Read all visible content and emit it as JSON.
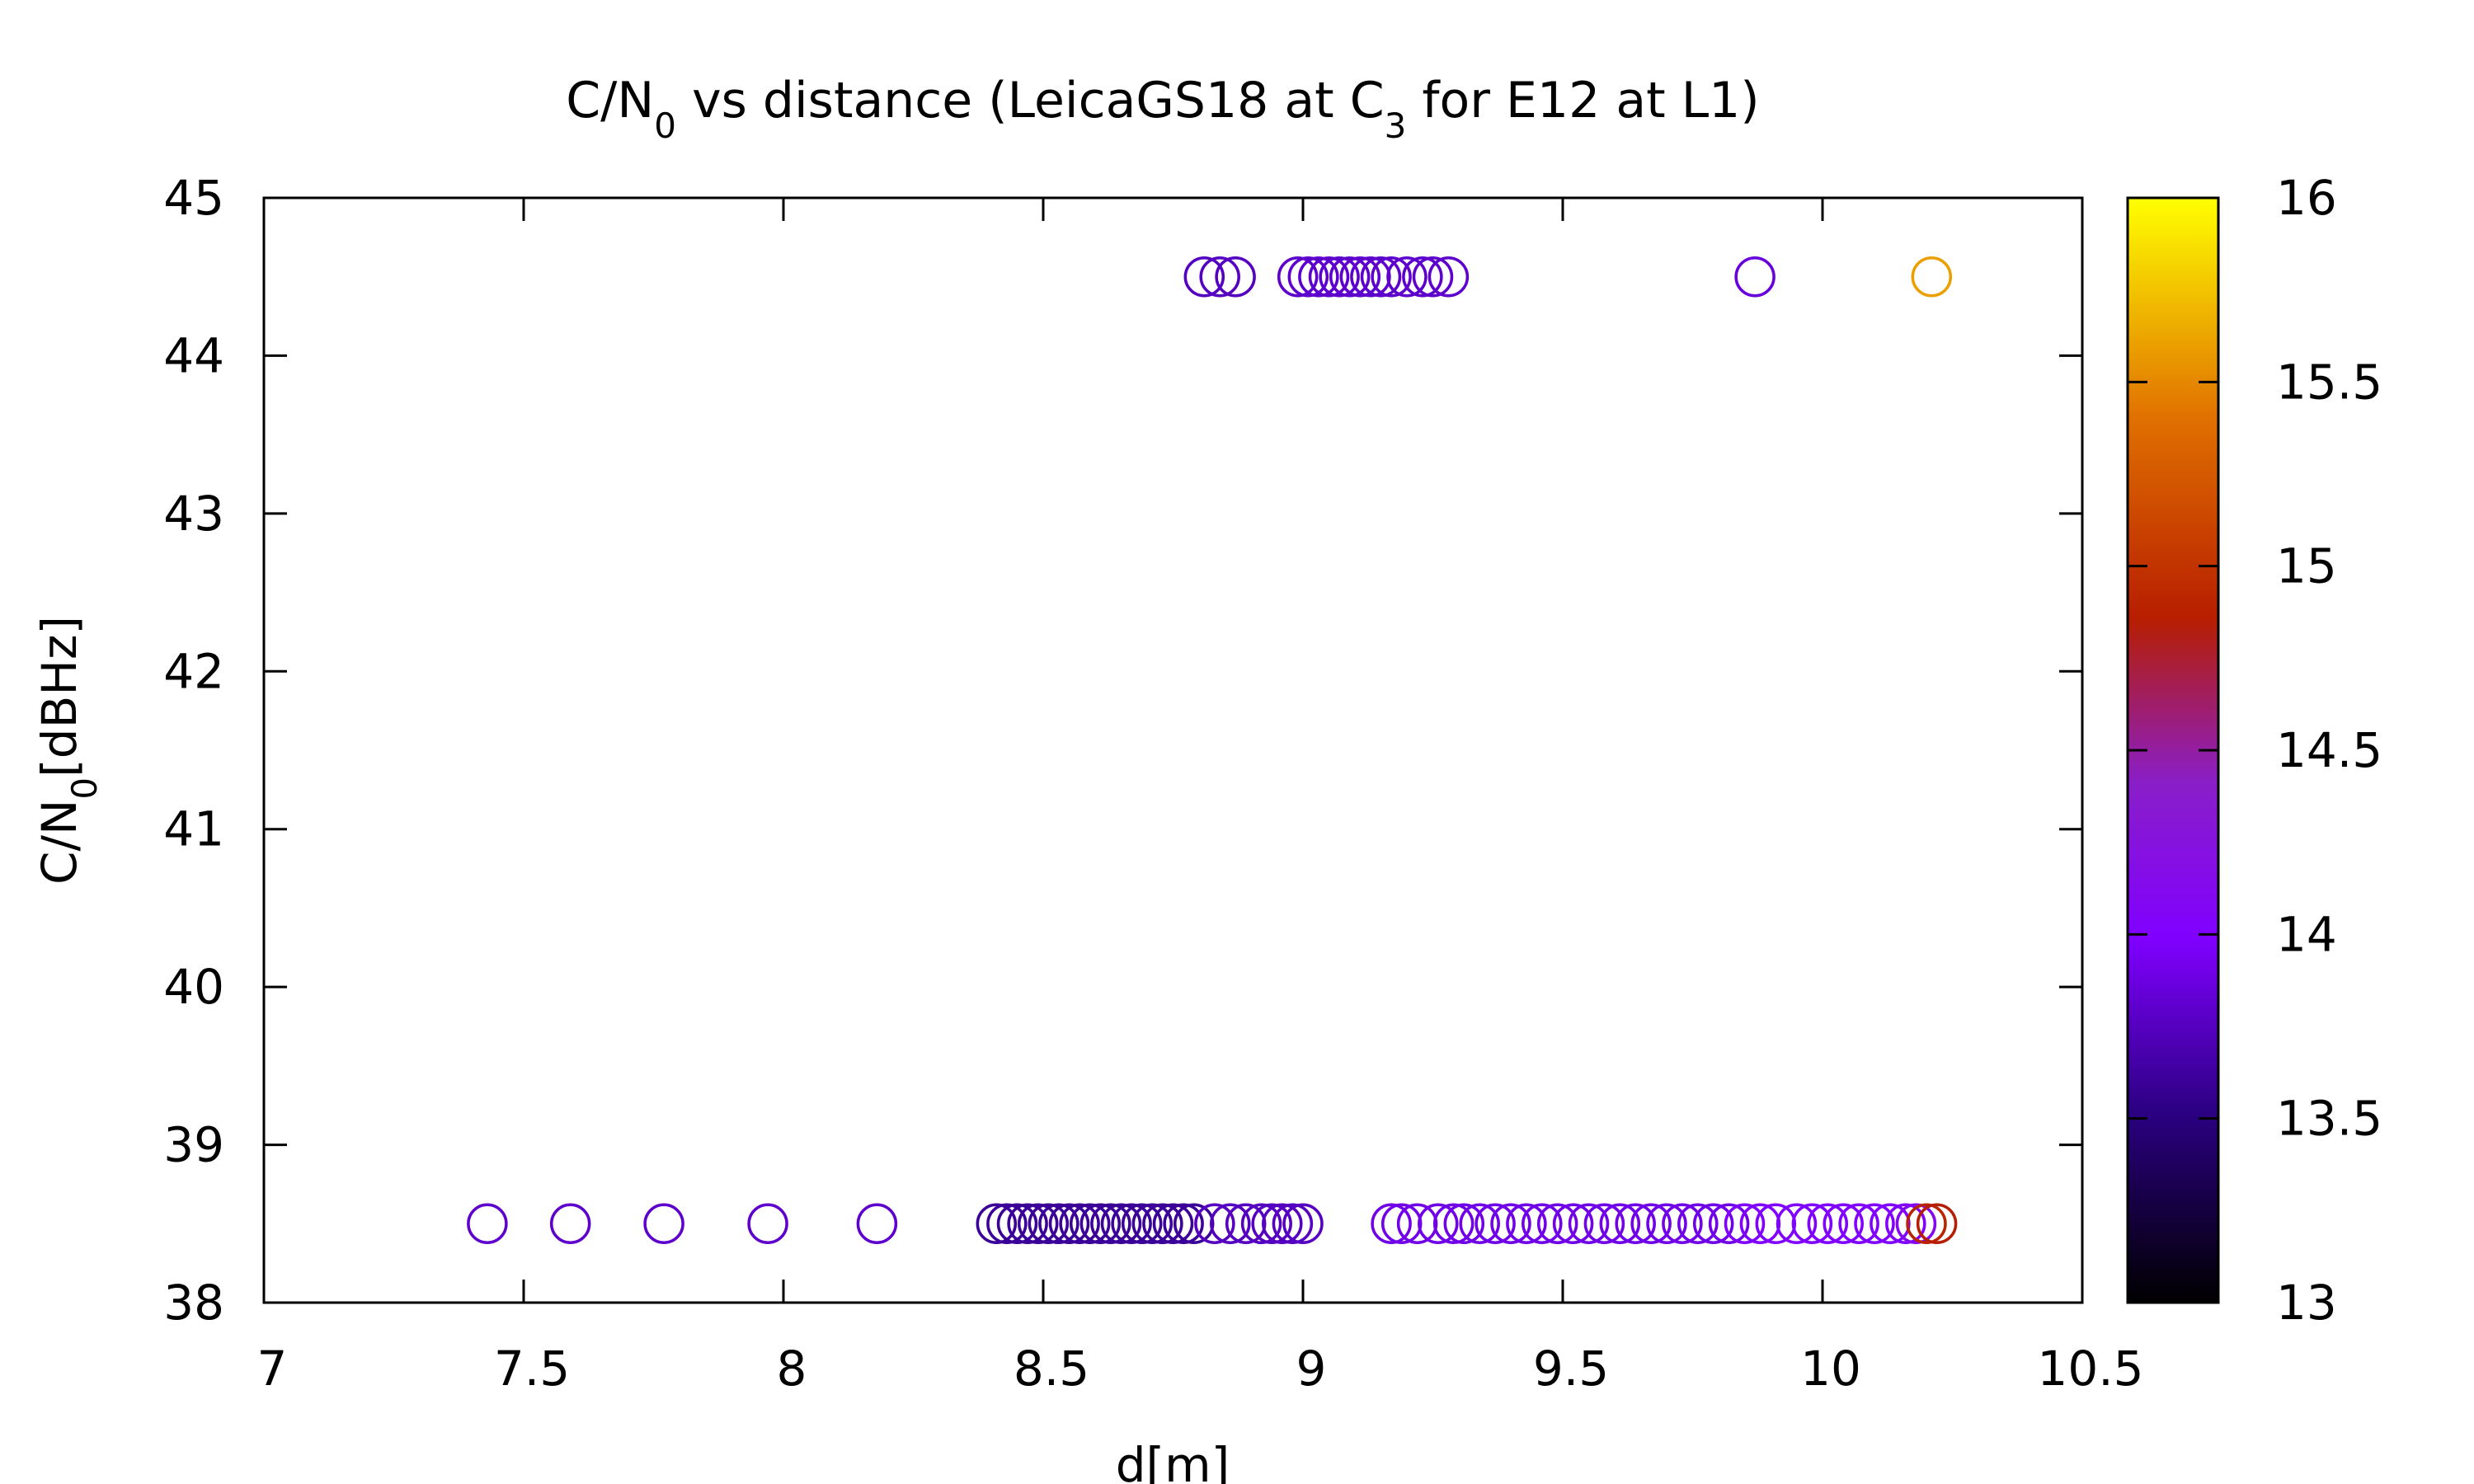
{
  "chart_data": {
    "type": "scatter",
    "title": {
      "parts": [
        {
          "text": "C/N"
        },
        {
          "text": "0",
          "sub": true
        },
        {
          "text": " vs distance (LeicaGS18 at C"
        },
        {
          "text": "3",
          "sub": true
        },
        {
          "text": " for E12 at L1)"
        }
      ]
    },
    "xlabel": "d[m]",
    "ylabel": {
      "parts": [
        {
          "text": "C/N"
        },
        {
          "text": "0",
          "sub": true
        },
        {
          "text": "[dBHz]"
        }
      ]
    },
    "xlim": [
      7,
      10.5
    ],
    "ylim": [
      38,
      45
    ],
    "xticks": [
      "7",
      "7.5",
      "8",
      "8.5",
      "9",
      "9.5",
      "10",
      "10.5"
    ],
    "yticks": [
      "38",
      "39",
      "40",
      "41",
      "42",
      "43",
      "44",
      "45"
    ],
    "colorbar": {
      "range": [
        13,
        16
      ],
      "ticks": [
        "13",
        "13.5",
        "14",
        "14.5",
        "15",
        "15.5",
        "16"
      ],
      "palette": [
        "#000000",
        "#2a0080",
        "#8000ff",
        "#8a1ec8",
        "#b71e00",
        "#e07000",
        "#ffff00"
      ],
      "palette_stops": [
        0,
        0.17,
        0.33,
        0.47,
        0.62,
        0.8,
        1
      ]
    },
    "grid": false,
    "marker": "open-circle",
    "series": [
      {
        "points": [
          {
            "x": 8.81,
            "y": 44.5,
            "c": 13.75
          },
          {
            "x": 8.84,
            "y": 44.5,
            "c": 13.75
          },
          {
            "x": 8.87,
            "y": 44.5,
            "c": 13.75
          },
          {
            "x": 8.99,
            "y": 44.5,
            "c": 13.8
          },
          {
            "x": 9.01,
            "y": 44.5,
            "c": 13.8
          },
          {
            "x": 9.03,
            "y": 44.5,
            "c": 13.8
          },
          {
            "x": 9.05,
            "y": 44.5,
            "c": 13.8
          },
          {
            "x": 9.07,
            "y": 44.5,
            "c": 13.8
          },
          {
            "x": 9.09,
            "y": 44.5,
            "c": 13.8
          },
          {
            "x": 9.11,
            "y": 44.5,
            "c": 13.8
          },
          {
            "x": 9.13,
            "y": 44.5,
            "c": 13.8
          },
          {
            "x": 9.15,
            "y": 44.5,
            "c": 13.8
          },
          {
            "x": 9.17,
            "y": 44.5,
            "c": 13.8
          },
          {
            "x": 9.2,
            "y": 44.5,
            "c": 13.8
          },
          {
            "x": 9.23,
            "y": 44.5,
            "c": 13.8
          },
          {
            "x": 9.25,
            "y": 44.5,
            "c": 13.8
          },
          {
            "x": 9.28,
            "y": 44.5,
            "c": 13.8
          },
          {
            "x": 9.87,
            "y": 44.5,
            "c": 13.85
          },
          {
            "x": 10.21,
            "y": 44.5,
            "c": 15.6
          },
          {
            "x": 7.43,
            "y": 38.5,
            "c": 13.8
          },
          {
            "x": 7.59,
            "y": 38.5,
            "c": 13.8
          },
          {
            "x": 7.77,
            "y": 38.5,
            "c": 13.8
          },
          {
            "x": 7.97,
            "y": 38.5,
            "c": 13.8
          },
          {
            "x": 8.18,
            "y": 38.5,
            "c": 13.8
          },
          {
            "x": 8.41,
            "y": 38.5,
            "c": 13.6
          },
          {
            "x": 8.43,
            "y": 38.5,
            "c": 13.6
          },
          {
            "x": 8.45,
            "y": 38.5,
            "c": 13.6
          },
          {
            "x": 8.47,
            "y": 38.5,
            "c": 13.6
          },
          {
            "x": 8.49,
            "y": 38.5,
            "c": 13.6
          },
          {
            "x": 8.51,
            "y": 38.5,
            "c": 13.6
          },
          {
            "x": 8.53,
            "y": 38.5,
            "c": 13.6
          },
          {
            "x": 8.55,
            "y": 38.5,
            "c": 13.6
          },
          {
            "x": 8.57,
            "y": 38.5,
            "c": 13.6
          },
          {
            "x": 8.59,
            "y": 38.5,
            "c": 13.6
          },
          {
            "x": 8.61,
            "y": 38.5,
            "c": 13.6
          },
          {
            "x": 8.63,
            "y": 38.5,
            "c": 13.6
          },
          {
            "x": 8.65,
            "y": 38.5,
            "c": 13.6
          },
          {
            "x": 8.67,
            "y": 38.5,
            "c": 13.6
          },
          {
            "x": 8.69,
            "y": 38.5,
            "c": 13.6
          },
          {
            "x": 8.71,
            "y": 38.5,
            "c": 13.6
          },
          {
            "x": 8.73,
            "y": 38.5,
            "c": 13.6
          },
          {
            "x": 8.75,
            "y": 38.5,
            "c": 13.6
          },
          {
            "x": 8.77,
            "y": 38.5,
            "c": 13.6
          },
          {
            "x": 8.79,
            "y": 38.5,
            "c": 13.6
          },
          {
            "x": 8.83,
            "y": 38.5,
            "c": 13.75
          },
          {
            "x": 8.86,
            "y": 38.5,
            "c": 13.75
          },
          {
            "x": 8.89,
            "y": 38.5,
            "c": 13.75
          },
          {
            "x": 8.92,
            "y": 38.5,
            "c": 13.75
          },
          {
            "x": 8.94,
            "y": 38.5,
            "c": 13.75
          },
          {
            "x": 8.96,
            "y": 38.5,
            "c": 13.75
          },
          {
            "x": 8.98,
            "y": 38.5,
            "c": 13.75
          },
          {
            "x": 9.0,
            "y": 38.5,
            "c": 13.75
          },
          {
            "x": 9.17,
            "y": 38.5,
            "c": 13.9
          },
          {
            "x": 9.19,
            "y": 38.5,
            "c": 13.9
          },
          {
            "x": 9.22,
            "y": 38.5,
            "c": 13.9
          },
          {
            "x": 9.26,
            "y": 38.5,
            "c": 13.9
          },
          {
            "x": 9.29,
            "y": 38.5,
            "c": 13.9
          },
          {
            "x": 9.31,
            "y": 38.5,
            "c": 13.9
          },
          {
            "x": 9.34,
            "y": 38.5,
            "c": 13.9
          },
          {
            "x": 9.37,
            "y": 38.5,
            "c": 13.9
          },
          {
            "x": 9.4,
            "y": 38.5,
            "c": 13.9
          },
          {
            "x": 9.43,
            "y": 38.5,
            "c": 13.9
          },
          {
            "x": 9.46,
            "y": 38.5,
            "c": 13.9
          },
          {
            "x": 9.49,
            "y": 38.5,
            "c": 13.9
          },
          {
            "x": 9.52,
            "y": 38.5,
            "c": 13.9
          },
          {
            "x": 9.55,
            "y": 38.5,
            "c": 13.9
          },
          {
            "x": 9.58,
            "y": 38.5,
            "c": 13.9
          },
          {
            "x": 9.61,
            "y": 38.5,
            "c": 13.9
          },
          {
            "x": 9.64,
            "y": 38.5,
            "c": 13.9
          },
          {
            "x": 9.67,
            "y": 38.5,
            "c": 13.9
          },
          {
            "x": 9.7,
            "y": 38.5,
            "c": 13.9
          },
          {
            "x": 9.73,
            "y": 38.5,
            "c": 13.9
          },
          {
            "x": 9.76,
            "y": 38.5,
            "c": 13.9
          },
          {
            "x": 9.79,
            "y": 38.5,
            "c": 13.9
          },
          {
            "x": 9.82,
            "y": 38.5,
            "c": 13.9
          },
          {
            "x": 9.85,
            "y": 38.5,
            "c": 14.0
          },
          {
            "x": 9.88,
            "y": 38.5,
            "c": 14.0
          },
          {
            "x": 9.91,
            "y": 38.5,
            "c": 14.0
          },
          {
            "x": 9.95,
            "y": 38.5,
            "c": 14.0
          },
          {
            "x": 9.98,
            "y": 38.5,
            "c": 14.0
          },
          {
            "x": 10.01,
            "y": 38.5,
            "c": 14.0
          },
          {
            "x": 10.04,
            "y": 38.5,
            "c": 14.0
          },
          {
            "x": 10.07,
            "y": 38.5,
            "c": 14.0
          },
          {
            "x": 10.1,
            "y": 38.5,
            "c": 14.0
          },
          {
            "x": 10.13,
            "y": 38.5,
            "c": 14.0
          },
          {
            "x": 10.16,
            "y": 38.5,
            "c": 14.0
          },
          {
            "x": 10.18,
            "y": 38.5,
            "c": 14.1
          },
          {
            "x": 10.2,
            "y": 38.5,
            "c": 14.9
          },
          {
            "x": 10.22,
            "y": 38.5,
            "c": 14.85
          }
        ]
      }
    ]
  }
}
